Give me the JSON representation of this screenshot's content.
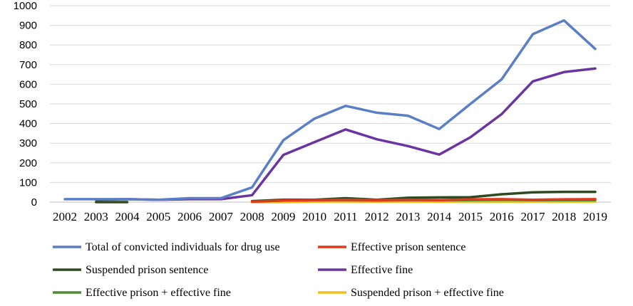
{
  "chart_data": {
    "type": "line",
    "title": "",
    "xlabel": "",
    "ylabel": "",
    "ylim": [
      0,
      1000
    ],
    "yticks": [
      0,
      100,
      200,
      300,
      400,
      500,
      600,
      700,
      800,
      900,
      1000
    ],
    "grid": true,
    "legend_position": "bottom",
    "x": [
      "2002",
      "2003",
      "2004",
      "2005",
      "2006",
      "2007",
      "2008",
      "2009",
      "2010",
      "2011",
      "2012",
      "2013",
      "2014",
      "2015",
      "2016",
      "2017",
      "2018",
      "2019"
    ],
    "series": [
      {
        "name": "Total of convicted individuals for drug use",
        "color": "#5B7FC6",
        "values": [
          15,
          15,
          15,
          12,
          20,
          20,
          75,
          315,
          425,
          490,
          455,
          440,
          372,
          500,
          625,
          855,
          925,
          780
        ]
      },
      {
        "name": "Effective prison sentence",
        "color": "#E03A1E",
        "values": [
          null,
          null,
          null,
          null,
          null,
          null,
          2,
          8,
          10,
          12,
          10,
          12,
          10,
          14,
          15,
          12,
          14,
          15
        ]
      },
      {
        "name": "Suspended prison sentence",
        "color": "#2F4A20",
        "values": [
          null,
          0,
          0,
          null,
          null,
          null,
          5,
          12,
          12,
          20,
          12,
          22,
          24,
          25,
          40,
          50,
          52,
          52
        ]
      },
      {
        "name": "Effective fine",
        "color": "#6A35A0",
        "values": [
          null,
          12,
          15,
          12,
          15,
          15,
          35,
          240,
          305,
          370,
          320,
          285,
          242,
          330,
          448,
          615,
          662,
          680
        ]
      },
      {
        "name": "Effective prison + effective fine",
        "color": "#4E8A35",
        "values": [
          null,
          null,
          null,
          null,
          null,
          null,
          3,
          8,
          10,
          10,
          8,
          10,
          10,
          10,
          12,
          10,
          10,
          10
        ]
      },
      {
        "name": "Suspended prison + effective fine",
        "color": "#F2BE1E",
        "values": [
          null,
          null,
          null,
          null,
          null,
          null,
          0,
          0,
          2,
          2,
          2,
          2,
          2,
          2,
          2,
          3,
          3,
          2
        ]
      }
    ]
  }
}
